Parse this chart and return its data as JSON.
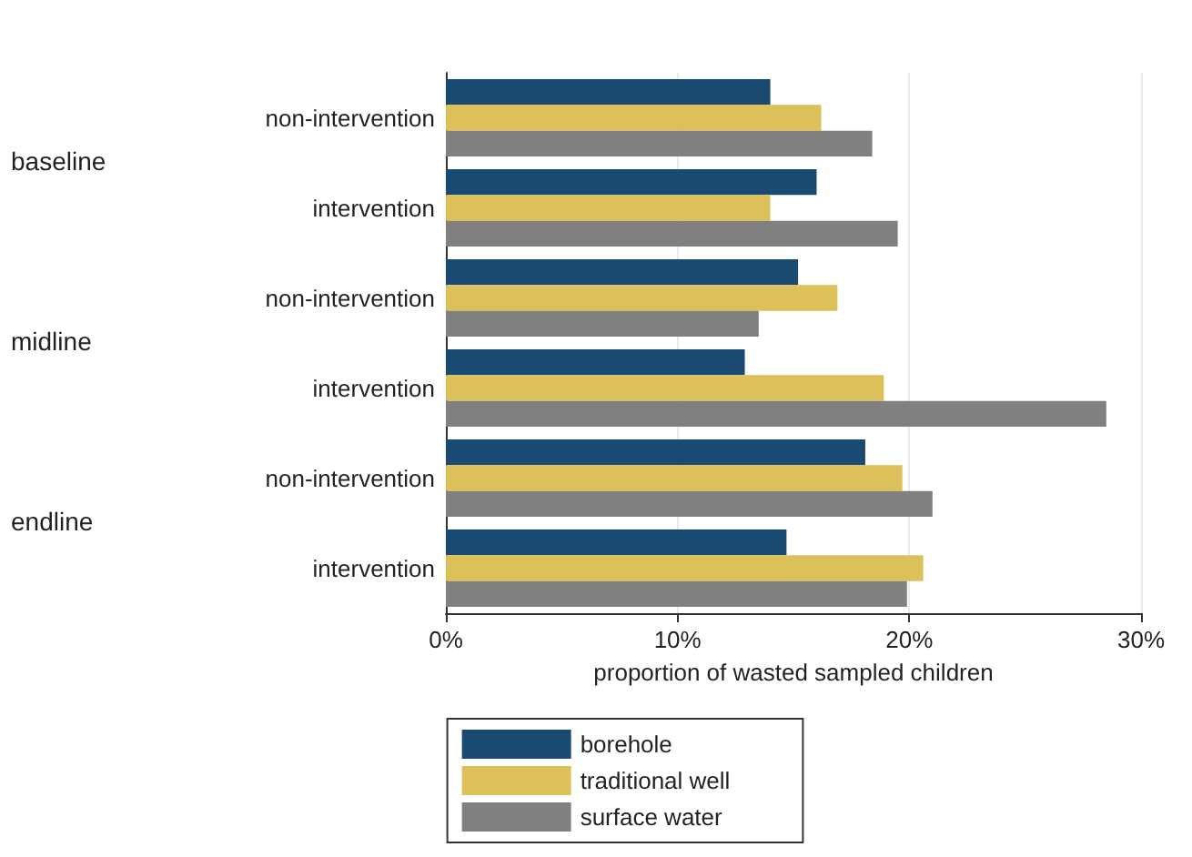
{
  "chart_data": {
    "type": "bar",
    "orientation": "horizontal",
    "xlabel": "proportion of wasted sampled children",
    "categories": [
      "non-intervention",
      "intervention",
      "non-intervention",
      "intervention",
      "non-intervention",
      "intervention"
    ],
    "annotations": [
      "baseline",
      "midline",
      "endline"
    ],
    "series": [
      {
        "name": "borehole",
        "color": "#1a4a72",
        "values": [
          14.0,
          16.0,
          15.2,
          12.9,
          18.1,
          14.7
        ]
      },
      {
        "name": "traditional well",
        "color": "#dcc05a",
        "values": [
          16.2,
          14.0,
          16.9,
          18.9,
          19.7,
          20.6
        ]
      },
      {
        "name": "surface water",
        "color": "#808080",
        "values": [
          18.4,
          19.5,
          13.5,
          28.5,
          21.0,
          19.9
        ]
      }
    ],
    "xlim": [
      0,
      30
    ],
    "xticks": [
      {
        "value": 0,
        "label": "0%"
      },
      {
        "value": 10,
        "label": "10%"
      },
      {
        "value": 20,
        "label": "20%"
      },
      {
        "value": 30,
        "label": "30%"
      }
    ],
    "grid": "x",
    "legend": "bottom"
  }
}
